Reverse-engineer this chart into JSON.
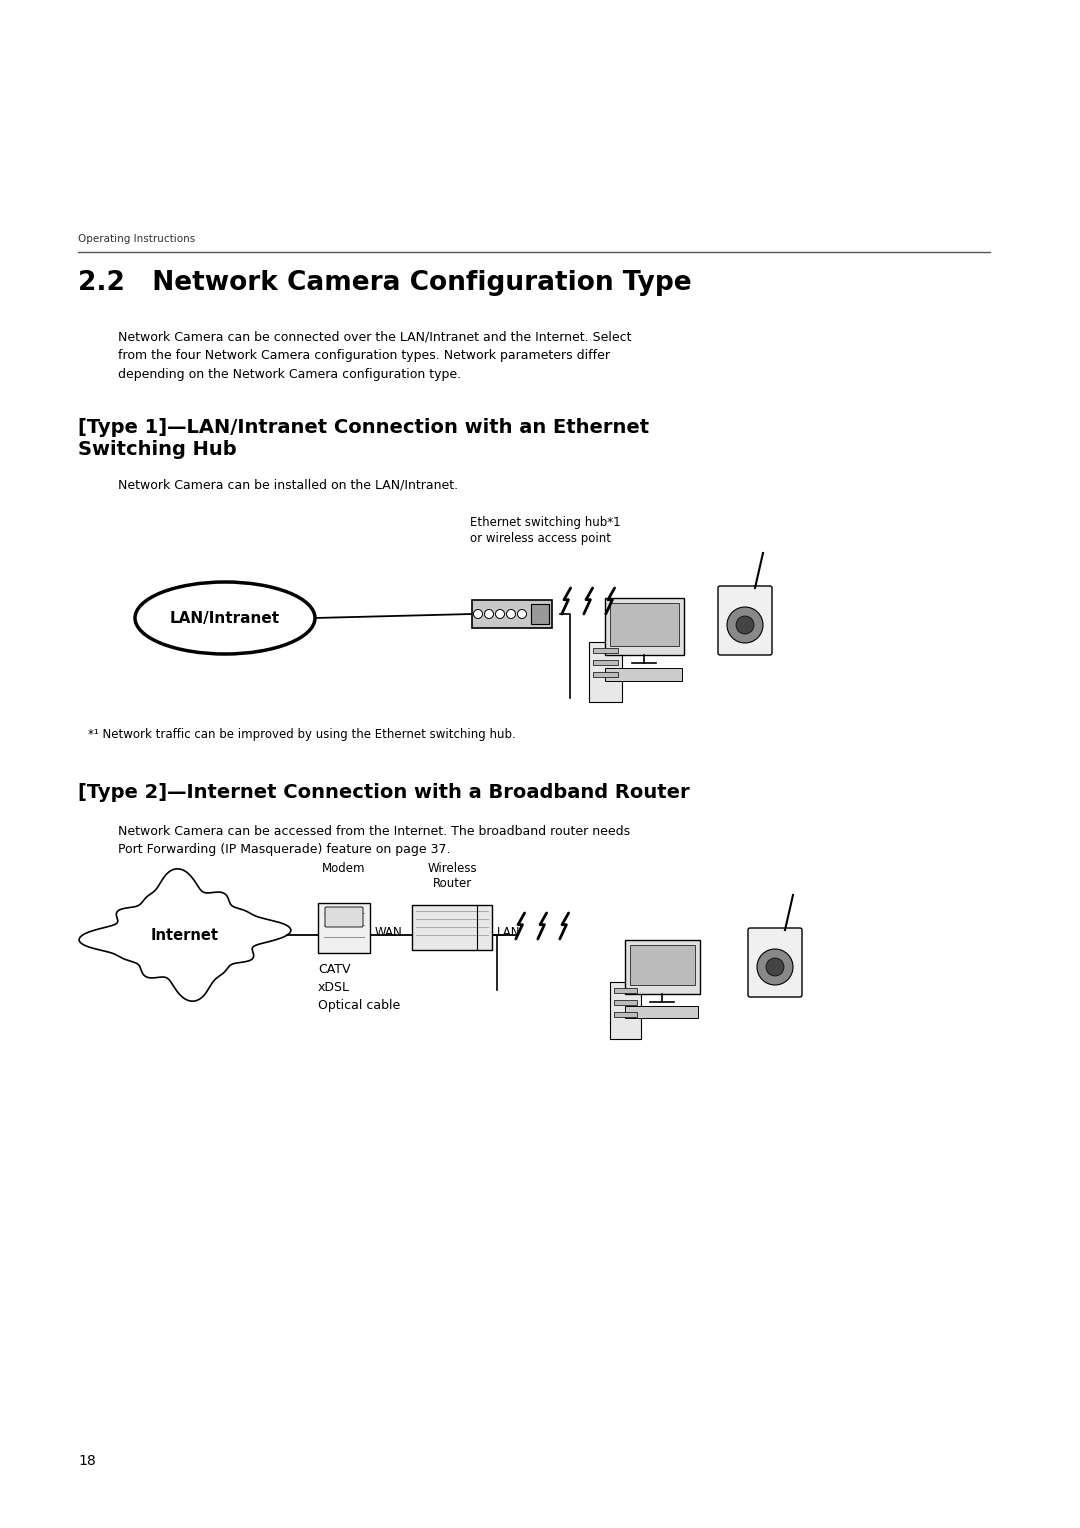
{
  "bg_color": "#ffffff",
  "header_text": "Operating Instructions",
  "main_title": "2.2   Network Camera Configuration Type",
  "intro_text": "Network Camera can be connected over the LAN/Intranet and the Internet. Select\nfrom the four Network Camera configuration types. Network parameters differ\ndepending on the Network Camera configuration type.",
  "type1_heading_line1": "[Type 1]—LAN/Intranet Connection with an Ethernet",
  "type1_heading_line2": "Switching Hub",
  "type1_body": "Network Camera can be installed on the LAN/Intranet.",
  "type1_hub_label_line1": "Ethernet switching hub*1",
  "type1_hub_label_line2": "or wireless access point",
  "type1_lan_label": "LAN/Intranet",
  "type1_footnote": "*¹ Network traffic can be improved by using the Ethernet switching hub.",
  "type2_heading": "[Type 2]—Internet Connection with a Broadband Router",
  "type2_body_line1": "Network Camera can be accessed from the Internet. The broadband router needs",
  "type2_body_line2": "Port Forwarding (IP Masquerade) feature on page 37.",
  "type2_modem_label": "Modem",
  "type2_wan_label": "WAN",
  "type2_router_label_line1": "Wireless",
  "type2_router_label_line2": "Router",
  "type2_lan_label": "LAN",
  "type2_internet_label": "Internet",
  "type2_cable_line1": "CATV",
  "type2_cable_line2": "xDSL",
  "type2_cable_line3": "Optical cable",
  "page_number": "18",
  "fig_w": 10.8,
  "fig_h": 15.28,
  "dpi": 100
}
